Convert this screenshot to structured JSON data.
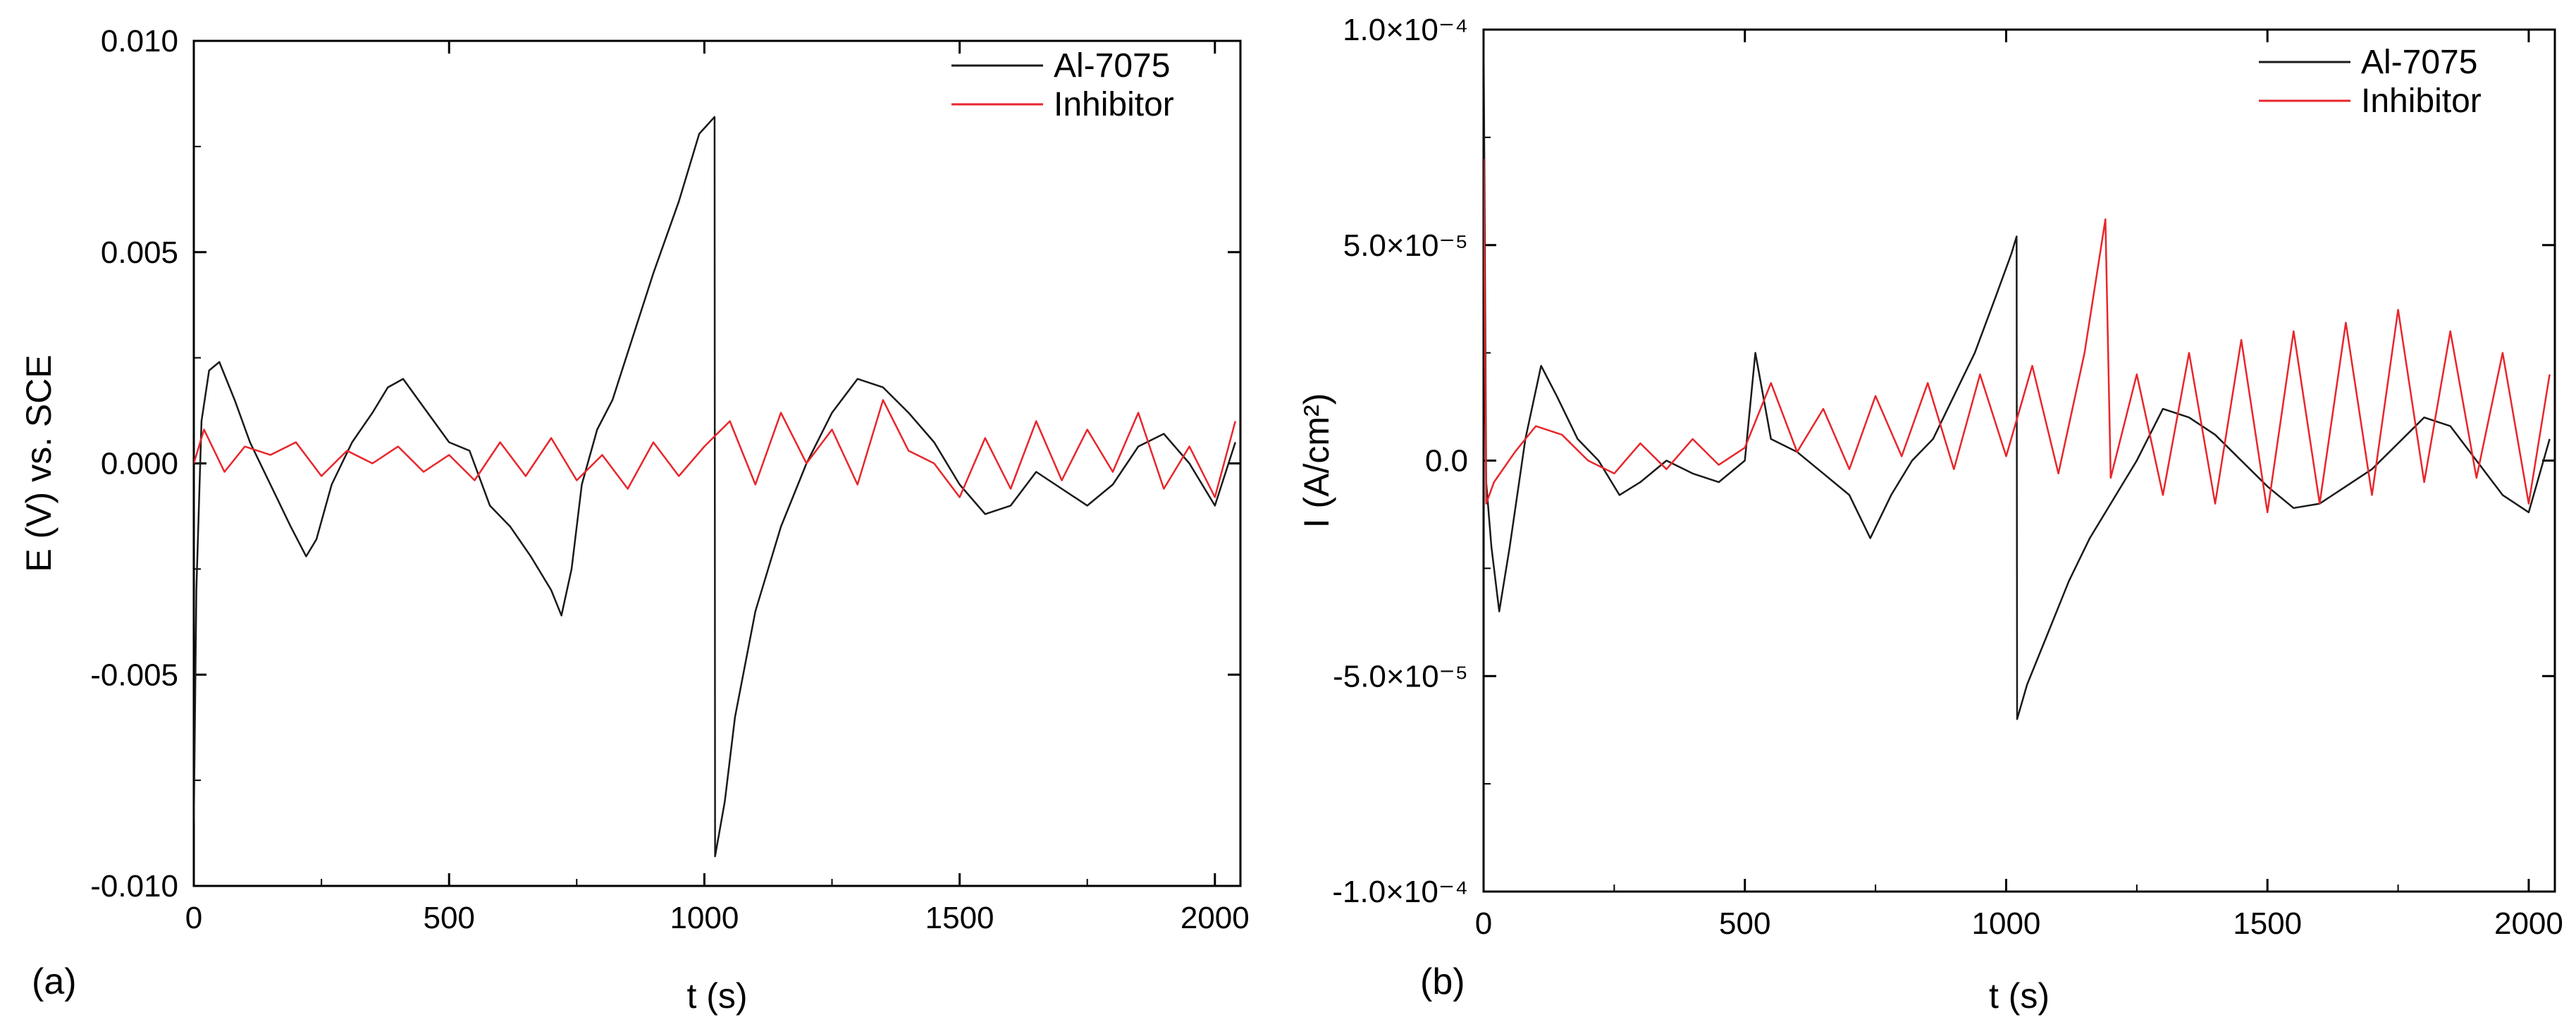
{
  "chart_data": [
    {
      "type": "line",
      "panel_label": "(a)",
      "xlabel": "t (s)",
      "ylabel": "E (V) vs. SCE",
      "xlim": [
        0,
        2050
      ],
      "ylim": [
        -0.01,
        0.01
      ],
      "xticks": [
        0,
        500,
        1000,
        1500,
        2000
      ],
      "xtick_labels": [
        "0",
        "500",
        "1000",
        "1500",
        "2000"
      ],
      "yticks": [
        -0.01,
        -0.005,
        0.0,
        0.005,
        0.01
      ],
      "ytick_labels": [
        "-0.010",
        "-0.005",
        "0.000",
        "0.005",
        "0.010"
      ],
      "legend_position": "top-right",
      "series": [
        {
          "name": "Al-7075",
          "color": "#1a1a1a",
          "x": [
            0,
            5,
            15,
            30,
            50,
            80,
            110,
            150,
            190,
            220,
            240,
            270,
            310,
            350,
            380,
            410,
            440,
            470,
            500,
            540,
            580,
            620,
            660,
            700,
            720,
            740,
            760,
            790,
            820,
            860,
            900,
            950,
            990,
            1020,
            1021,
            1040,
            1060,
            1100,
            1150,
            1200,
            1250,
            1300,
            1350,
            1400,
            1450,
            1500,
            1550,
            1600,
            1650,
            1700,
            1750,
            1800,
            1850,
            1900,
            1950,
            2000,
            2040
          ],
          "y": [
            -0.0085,
            -0.003,
            0.001,
            0.0022,
            0.0024,
            0.0015,
            0.0005,
            -0.0005,
            -0.0015,
            -0.0022,
            -0.0018,
            -0.0005,
            0.0005,
            0.0012,
            0.0018,
            0.002,
            0.0015,
            0.001,
            0.0005,
            0.0003,
            -0.001,
            -0.0015,
            -0.0022,
            -0.003,
            -0.0036,
            -0.0025,
            -0.0005,
            0.0008,
            0.0015,
            0.003,
            0.0045,
            0.0062,
            0.0078,
            0.0082,
            -0.0093,
            -0.008,
            -0.006,
            -0.0035,
            -0.0015,
            0.0,
            0.0012,
            0.002,
            0.0018,
            0.0012,
            0.0005,
            -0.0005,
            -0.0012,
            -0.001,
            -0.0002,
            -0.0006,
            -0.001,
            -0.0005,
            0.0004,
            0.0007,
            0.0,
            -0.001,
            0.0005
          ]
        },
        {
          "name": "Inhibitor",
          "color": "#e8262b",
          "x": [
            0,
            20,
            60,
            100,
            150,
            200,
            250,
            300,
            350,
            400,
            450,
            500,
            550,
            600,
            650,
            700,
            750,
            800,
            850,
            900,
            950,
            1000,
            1050,
            1100,
            1150,
            1200,
            1250,
            1300,
            1350,
            1400,
            1450,
            1500,
            1550,
            1600,
            1650,
            1700,
            1750,
            1800,
            1850,
            1900,
            1950,
            2000,
            2040
          ],
          "y": [
            0.0,
            0.0008,
            -0.0002,
            0.0004,
            0.0002,
            0.0005,
            -0.0003,
            0.0003,
            0.0,
            0.0004,
            -0.0002,
            0.0002,
            -0.0004,
            0.0005,
            -0.0003,
            0.0006,
            -0.0004,
            0.0002,
            -0.0006,
            0.0005,
            -0.0003,
            0.0004,
            0.001,
            -0.0005,
            0.0012,
            0.0,
            0.0008,
            -0.0005,
            0.0015,
            0.0003,
            0.0,
            -0.0008,
            0.0006,
            -0.0006,
            0.001,
            -0.0004,
            0.0008,
            -0.0002,
            0.0012,
            -0.0006,
            0.0004,
            -0.0008,
            0.001
          ]
        }
      ]
    },
    {
      "type": "line",
      "panel_label": "(b)",
      "xlabel": "t (s)",
      "ylabel": "I (A/cm²)",
      "xlim": [
        0,
        2050
      ],
      "ylim": [
        -0.0001,
        0.0001
      ],
      "xticks": [
        0,
        500,
        1000,
        1500,
        2000
      ],
      "xtick_labels": [
        "0",
        "500",
        "1000",
        "1500",
        "2000"
      ],
      "yticks": [
        -0.0001,
        -5e-05,
        0.0,
        5e-05,
        0.0001
      ],
      "ytick_labels": [
        "-1.0×10⁻⁴",
        "-5.0×10⁻⁵",
        "0.0",
        "5.0×10⁻⁵",
        "1.0×10⁻⁴"
      ],
      "legend_position": "top-right",
      "series": [
        {
          "name": "Al-7075",
          "color": "#1a1a1a",
          "x": [
            0,
            5,
            15,
            30,
            50,
            80,
            110,
            140,
            180,
            220,
            260,
            300,
            350,
            400,
            450,
            500,
            520,
            550,
            600,
            650,
            700,
            740,
            780,
            820,
            860,
            900,
            940,
            980,
            1010,
            1020,
            1021,
            1040,
            1080,
            1120,
            1160,
            1200,
            1250,
            1300,
            1350,
            1400,
            1450,
            1500,
            1550,
            1600,
            1650,
            1700,
            1750,
            1800,
            1850,
            1900,
            1950,
            2000,
            2040
          ],
          "y": [
            0.0001,
            -5e-06,
            -2e-05,
            -3.5e-05,
            -2e-05,
            5e-06,
            2.2e-05,
            1.5e-05,
            5e-06,
            0.0,
            -8e-06,
            -5e-06,
            0.0,
            -3e-06,
            -5e-06,
            0.0,
            2.5e-05,
            5e-06,
            2e-06,
            -3e-06,
            -8e-06,
            -1.8e-05,
            -8e-06,
            0.0,
            5e-06,
            1.5e-05,
            2.5e-05,
            3.8e-05,
            4.8e-05,
            5.2e-05,
            -6e-05,
            -5.2e-05,
            -4e-05,
            -2.8e-05,
            -1.8e-05,
            -1e-05,
            0.0,
            1.2e-05,
            1e-05,
            6e-06,
            0.0,
            -6e-06,
            -1.1e-05,
            -1e-05,
            -6e-06,
            -2e-06,
            4e-06,
            1e-05,
            8e-06,
            0.0,
            -8e-06,
            -1.2e-05,
            5e-06
          ]
        },
        {
          "name": "Inhibitor",
          "color": "#e8262b",
          "x": [
            0,
            5,
            20,
            60,
            100,
            150,
            200,
            250,
            300,
            350,
            400,
            450,
            500,
            550,
            600,
            650,
            700,
            750,
            800,
            850,
            900,
            950,
            1000,
            1050,
            1100,
            1150,
            1190,
            1200,
            1250,
            1300,
            1350,
            1400,
            1450,
            1500,
            1550,
            1600,
            1650,
            1700,
            1750,
            1800,
            1850,
            1900,
            1950,
            2000,
            2040
          ],
          "y": [
            7e-05,
            -1e-05,
            -5e-06,
            2e-06,
            8e-06,
            6e-06,
            0.0,
            -3e-06,
            4e-06,
            -2e-06,
            5e-06,
            -1e-06,
            3e-06,
            1.8e-05,
            2e-06,
            1.2e-05,
            -2e-06,
            1.5e-05,
            1e-06,
            1.8e-05,
            -2e-06,
            2e-05,
            1e-06,
            2.2e-05,
            -3e-06,
            2.5e-05,
            5.6e-05,
            -4e-06,
            2e-05,
            -8e-06,
            2.5e-05,
            -1e-05,
            2.8e-05,
            -1.2e-05,
            3e-05,
            -1e-05,
            3.2e-05,
            -8e-06,
            3.5e-05,
            -5e-06,
            3e-05,
            -4e-06,
            2.5e-05,
            -1e-05,
            2e-05
          ]
        }
      ]
    }
  ]
}
